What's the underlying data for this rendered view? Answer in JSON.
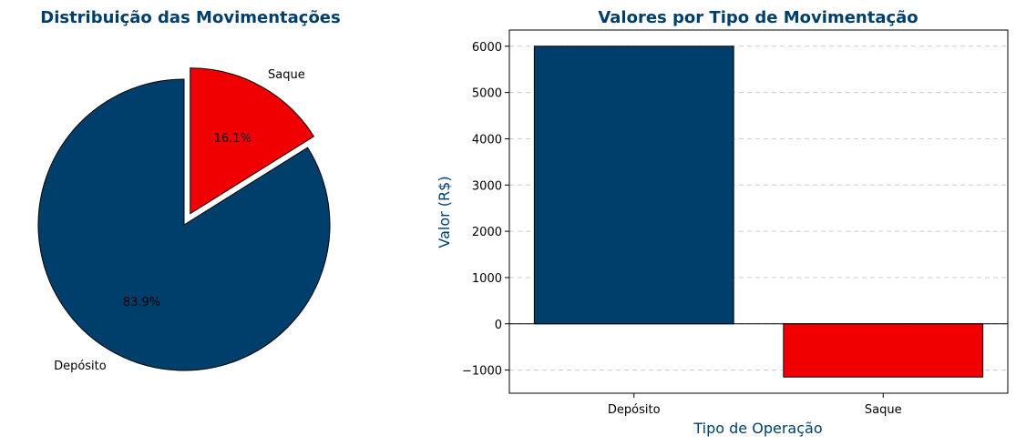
{
  "chart_data": [
    {
      "type": "pie",
      "title": "Distribuição das Movimentações",
      "slices": [
        {
          "label": "Depósito",
          "value": 83.9,
          "pct_label": "83.9%",
          "color": "#003f6b",
          "exploded": false
        },
        {
          "label": "Saque",
          "value": 16.1,
          "pct_label": "16.1%",
          "color": "#f00000",
          "exploded": true
        }
      ]
    },
    {
      "type": "bar",
      "title": "Valores por Tipo de Movimentação",
      "categories": [
        "Depósito",
        "Saque"
      ],
      "values": [
        6000,
        -1150
      ],
      "colors": [
        "#003f6b",
        "#f00000"
      ],
      "xlabel": "Tipo de Operação",
      "ylabel": "Valor (R$)",
      "ylim": [
        -1500,
        6350
      ],
      "yticks": [
        -1000,
        0,
        1000,
        2000,
        3000,
        4000,
        5000,
        6000
      ],
      "ytick_labels": [
        "−1000",
        "0",
        "1000",
        "2000",
        "3000",
        "4000",
        "5000",
        "6000"
      ],
      "grid": "y-dashed"
    }
  ]
}
